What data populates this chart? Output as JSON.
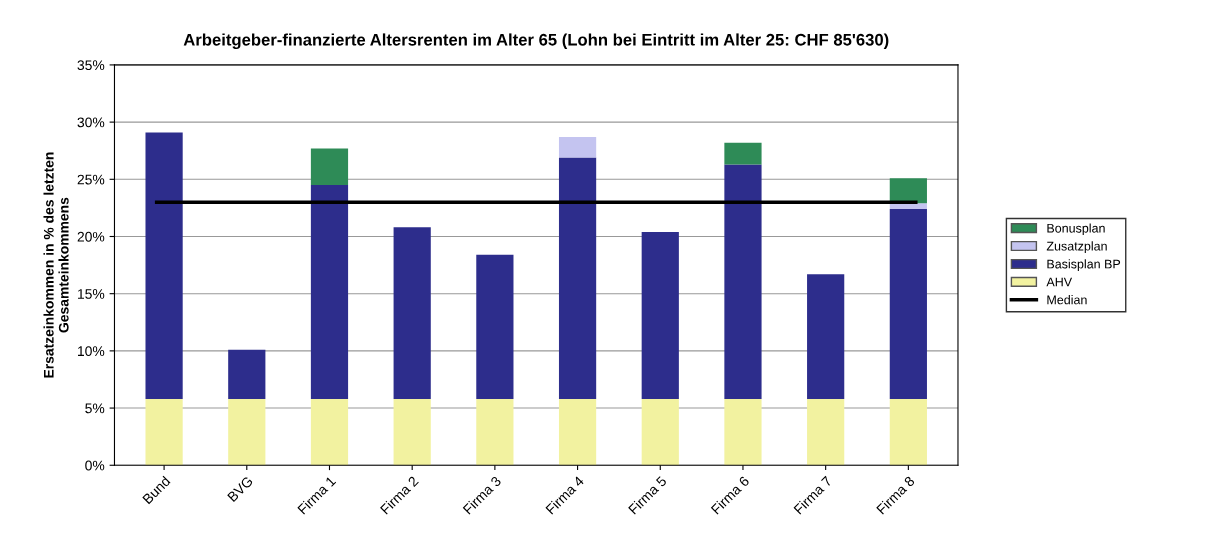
{
  "chart_data": {
    "type": "bar",
    "stacked": true,
    "title": "Arbeitgeber-finanzierte Altersrenten im Alter 65 (Lohn bei Eintritt im Alter 25: CHF 85'630)",
    "ylabel": "Ersatzeinkommen in % des letzten\nGesamteinkommens",
    "categories": [
      "Bund",
      "BVG",
      "Firma 1",
      "Firma 2",
      "Firma 3",
      "Firma 4",
      "Firma 5",
      "Firma 6",
      "Firma 7",
      "Firma 8"
    ],
    "series": [
      {
        "name": "AHV",
        "color": "#f2f2a0",
        "values": [
          5.8,
          5.8,
          5.8,
          5.8,
          5.8,
          5.8,
          5.8,
          5.8,
          5.8,
          5.8
        ]
      },
      {
        "name": "Basisplan BP",
        "color": "#2d2d8c",
        "values": [
          23.3,
          4.3,
          18.7,
          15.0,
          12.6,
          21.1,
          14.6,
          20.5,
          10.9,
          16.6
        ]
      },
      {
        "name": "Zusatzplan",
        "color": "#c4c4f0",
        "values": [
          null,
          null,
          null,
          null,
          null,
          1.8,
          null,
          null,
          null,
          0.5
        ]
      },
      {
        "name": "Bonusplan",
        "color": "#2e8b57",
        "values": [
          null,
          null,
          3.2,
          null,
          null,
          null,
          null,
          1.9,
          null,
          2.2
        ]
      }
    ],
    "ref_lines": [
      {
        "axis": "y",
        "value": 23.0,
        "label": "Median",
        "color": "#000000"
      }
    ],
    "ylim": [
      0,
      35
    ],
    "yticks": [
      {
        "value": 0,
        "label": "0%"
      },
      {
        "value": 5,
        "label": "5%"
      },
      {
        "value": 10,
        "label": "10%"
      },
      {
        "value": 15,
        "label": "15%"
      },
      {
        "value": 20,
        "label": "20%"
      },
      {
        "value": 25,
        "label": "25%"
      },
      {
        "value": 30,
        "label": "30%"
      },
      {
        "value": 35,
        "label": "35%"
      }
    ],
    "grid": "y",
    "legend": "right"
  }
}
